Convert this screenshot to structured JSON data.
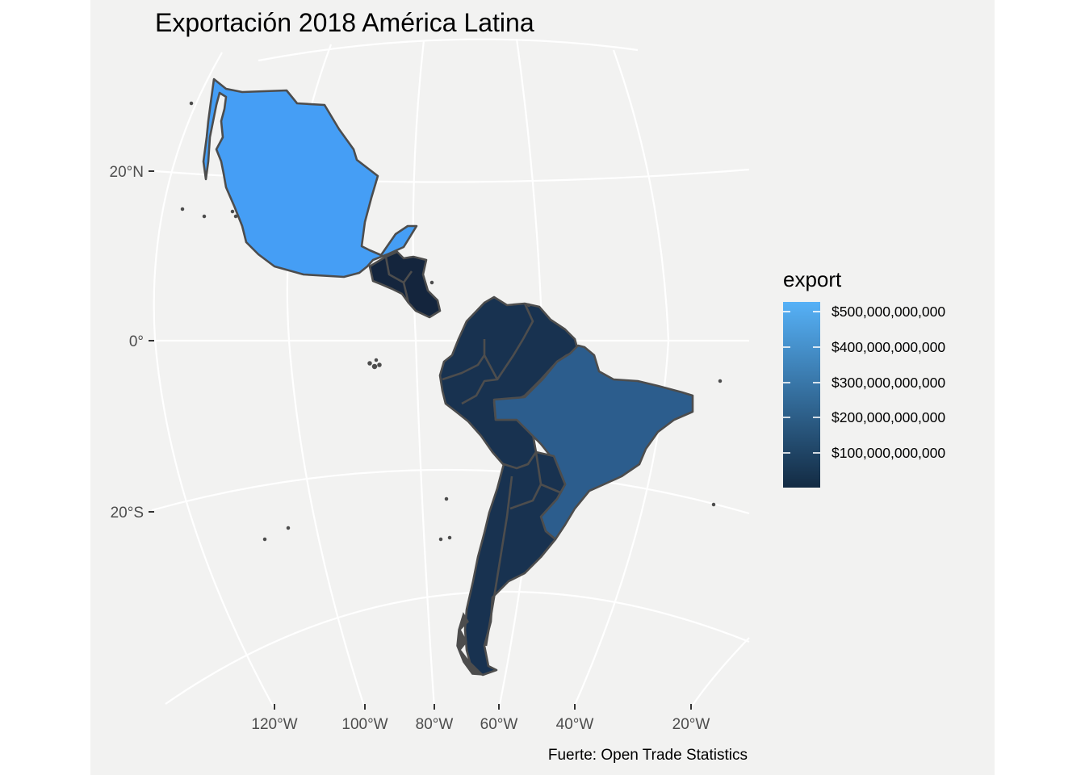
{
  "title": "Exportación 2018 América Latina",
  "caption": "Fuerte: Open Trade Statistics",
  "legend": {
    "title": "export",
    "labels": [
      "$500,000,000,000",
      "$400,000,000,000",
      "$300,000,000,000",
      "$200,000,000,000",
      "$100,000,000,000"
    ],
    "values": [
      500000000000,
      400000000000,
      300000000000,
      200000000000,
      100000000000
    ],
    "color_low": "#132b43",
    "color_high": "#56b1f7"
  },
  "axes": {
    "lat_labels": [
      "20°N",
      "0°",
      "20°S"
    ],
    "lon_labels": [
      "120°W",
      "100°W",
      "80°W",
      "60°W",
      "40°W",
      "20°W"
    ]
  },
  "colors": {
    "panel_background": "#f2f2f1",
    "gridline": "#ffffff",
    "country_border": "#4d4d4d",
    "mexico_fill": "#459ef5",
    "brazil_fill": "#2c5d8d",
    "other_fill": "#183250",
    "central_america_fill": "#14253d"
  },
  "regions": {
    "mexico": "Mexico",
    "central_america": "Central America",
    "northwest_south_america": "Colombia / Venezuela / Ecuador / Peru",
    "brazil": "Brazil",
    "southern_cone": "Bolivia / Paraguay / Uruguay / Argentina / Chile"
  }
}
